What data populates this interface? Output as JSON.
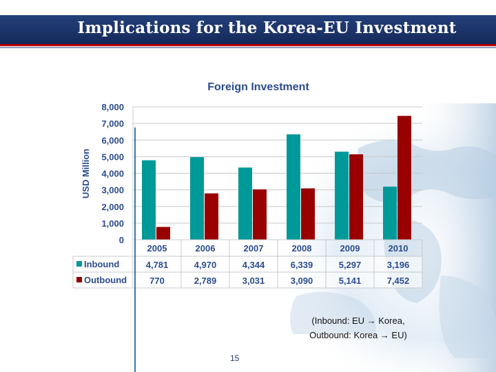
{
  "slide": {
    "title": "Implications for the Korea-EU Investment",
    "note_line1": "(Inbound: EU → Korea,",
    "note_line2": "Outbound: Korea → EU)",
    "page_number": "15"
  },
  "chart_data": {
    "type": "bar",
    "title": "Foreign Investment",
    "ylabel": "USD Million",
    "xlabel": "",
    "categories": [
      "2005",
      "2006",
      "2007",
      "2008",
      "2009",
      "2010"
    ],
    "ylim": [
      0,
      8000
    ],
    "yticks": [
      0,
      1000,
      2000,
      3000,
      4000,
      5000,
      6000,
      7000,
      8000
    ],
    "ytick_labels": [
      "0",
      "1,000",
      "2,000",
      "3,000",
      "4,000",
      "5,000",
      "6,000",
      "7,000",
      "8,000"
    ],
    "grid": true,
    "legend": "data-table",
    "series": [
      {
        "name": "Inbound",
        "color": "#009999",
        "values": [
          4781,
          4970,
          4344,
          6339,
          5297,
          3196
        ],
        "labels": [
          "4,781",
          "4,970",
          "4,344",
          "6,339",
          "5,297",
          "3,196"
        ]
      },
      {
        "name": "Outbound",
        "color": "#990000",
        "values": [
          770,
          2789,
          3031,
          3090,
          5141,
          7452
        ],
        "labels": [
          "770",
          "2,789",
          "3,031",
          "3,090",
          "5,141",
          "7,452"
        ]
      }
    ]
  },
  "colors": {
    "header": "#1a2f66",
    "accent_red": "#c00000",
    "chart_title": "#2b4c8c",
    "axis_text": "#2b4c8c"
  }
}
